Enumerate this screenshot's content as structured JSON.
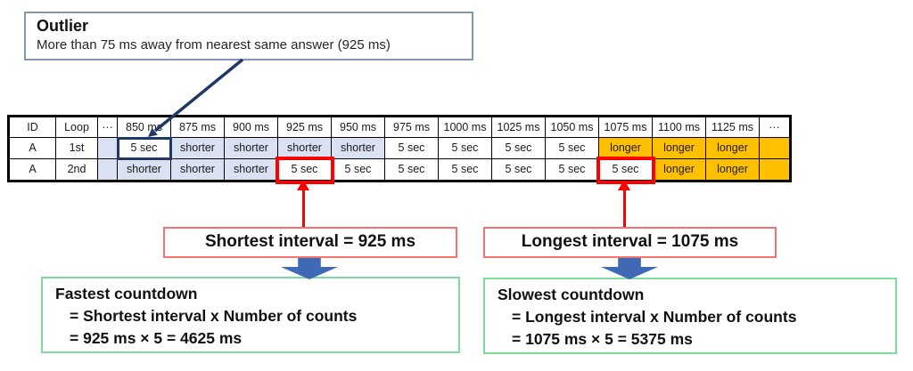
{
  "colors": {
    "navy_accent": "#1F3864",
    "outlier_box_border": "#8496B0",
    "shorter_cell_bg": "#D9E1F2",
    "longer_cell_bg": "#FFC000",
    "red_accent": "#FF0000",
    "red_box_border": "#F4736C",
    "green_box_border": "#7CDCA0",
    "blue_arrow_fill": "#3F68B5"
  },
  "outlier_callout": {
    "title": "Outlier",
    "description": "More than 75 ms away from nearest same answer (925 ms)"
  },
  "table": {
    "headers": [
      "ID",
      "Loop",
      "···",
      "850 ms",
      "875 ms",
      "900 ms",
      "925 ms",
      "950 ms",
      "975 ms",
      "1000 ms",
      "1025 ms",
      "1050 ms",
      "1075 ms",
      "1100 ms",
      "1125 ms",
      "···"
    ],
    "rows": [
      {
        "cells": [
          {
            "text": "A"
          },
          {
            "text": "1st"
          },
          {
            "text": "",
            "bg": "shorter"
          },
          {
            "text": "5 sec",
            "hl": "navy"
          },
          {
            "text": "shorter",
            "bg": "shorter"
          },
          {
            "text": "shorter",
            "bg": "shorter"
          },
          {
            "text": "shorter",
            "bg": "shorter"
          },
          {
            "text": "shorter",
            "bg": "shorter"
          },
          {
            "text": "5 sec"
          },
          {
            "text": "5 sec"
          },
          {
            "text": "5 sec"
          },
          {
            "text": "5 sec"
          },
          {
            "text": "longer",
            "bg": "longer"
          },
          {
            "text": "longer",
            "bg": "longer"
          },
          {
            "text": "longer",
            "bg": "longer"
          },
          {
            "text": "",
            "bg": "longer"
          }
        ]
      },
      {
        "cells": [
          {
            "text": "A"
          },
          {
            "text": "2nd"
          },
          {
            "text": "",
            "bg": "shorter"
          },
          {
            "text": "shorter",
            "bg": "shorter"
          },
          {
            "text": "shorter",
            "bg": "shorter"
          },
          {
            "text": "shorter",
            "bg": "shorter"
          },
          {
            "text": "5 sec",
            "hl": "red",
            "bold": true
          },
          {
            "text": "5 sec"
          },
          {
            "text": "5 sec"
          },
          {
            "text": "5 sec"
          },
          {
            "text": "5 sec"
          },
          {
            "text": "5 sec"
          },
          {
            "text": "5 sec",
            "hl": "red",
            "bold": true
          },
          {
            "text": "longer",
            "bg": "longer"
          },
          {
            "text": "longer",
            "bg": "longer"
          },
          {
            "text": "",
            "bg": "longer"
          }
        ]
      }
    ]
  },
  "shortest_box": {
    "label": "Shortest interval = 925 ms"
  },
  "longest_box": {
    "label": "Longest interval = 1075 ms"
  },
  "fastest_box": {
    "title": "Fastest countdown",
    "line2": "= Shortest interval x Number of counts",
    "line3": "= 925 ms × 5 = 4625 ms"
  },
  "slowest_box": {
    "title": "Slowest countdown",
    "line2": "= Longest interval x Number of counts",
    "line3": "= 1075 ms × 5 = 5375 ms"
  }
}
